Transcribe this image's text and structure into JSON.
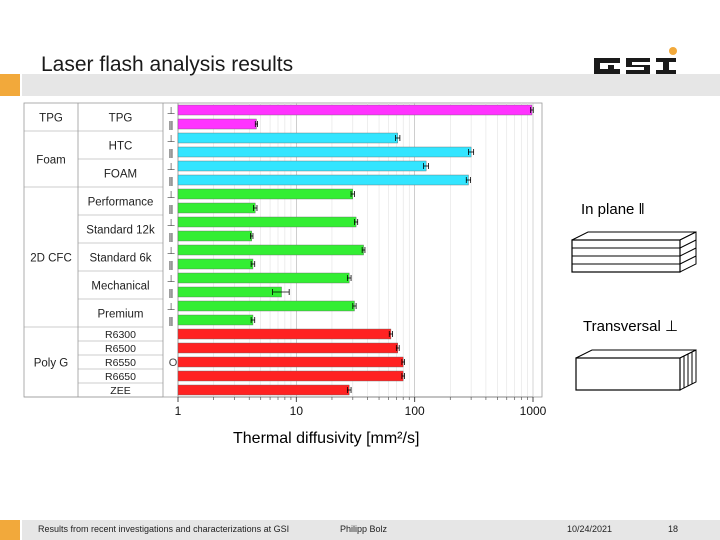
{
  "slide": {
    "title": "Laser flash analysis results",
    "footer_left": "Results from recent investigations and characterizations at GSI",
    "footer_author": "Philipp Bolz",
    "footer_date": "10/24/2021",
    "footer_page": "18",
    "logo_text": "GSI"
  },
  "callouts": {
    "in_plane": "In plane ǁ",
    "transversal": "Transversal ⊥"
  },
  "chart_data": {
    "type": "bar",
    "orientation": "horizontal",
    "x_scale": "log",
    "xlim": [
      1,
      1000
    ],
    "xlabel": "Thermal diffusivity [mm²/s]",
    "xticks": [
      "1",
      "10",
      "100",
      "1000"
    ],
    "grid": true,
    "groups": [
      "TPG",
      "Foam",
      "2D CFC",
      "Poly G"
    ],
    "materials": [
      {
        "group": "TPG",
        "name": "TPG",
        "rows": 2
      },
      {
        "group": "Foam",
        "name": "HTC",
        "rows": 2
      },
      {
        "group": "Foam",
        "name": "FOAM",
        "rows": 2
      },
      {
        "group": "2D CFC",
        "name": "Performance",
        "rows": 2
      },
      {
        "group": "2D CFC",
        "name": "Standard 12k",
        "rows": 2
      },
      {
        "group": "2D CFC",
        "name": "Standard 6k",
        "rows": 2
      },
      {
        "group": "2D CFC",
        "name": "Mechanical",
        "rows": 2
      },
      {
        "group": "2D CFC",
        "name": "Premium",
        "rows": 2
      },
      {
        "group": "Poly G",
        "name": "R6300",
        "rows": 1
      },
      {
        "group": "Poly G",
        "name": "R6500",
        "rows": 1
      },
      {
        "group": "Poly G",
        "name": "R6550",
        "rows": 1
      },
      {
        "group": "Poly G",
        "name": "R6650",
        "rows": 1
      },
      {
        "group": "Poly G",
        "name": "ZEE",
        "rows": 1
      }
    ],
    "orientation_marks": [
      "⊥",
      "ǁ"
    ],
    "isotropic_mark": "O",
    "bars": [
      {
        "value": 980,
        "err": 25,
        "color": "#ff33ff"
      },
      {
        "value": 4.6,
        "err": 0.1,
        "color": "#ff33ff"
      },
      {
        "value": 72,
        "err": 3,
        "color": "#33e5ff"
      },
      {
        "value": 300,
        "err": 15,
        "color": "#33e5ff"
      },
      {
        "value": 125,
        "err": 6,
        "color": "#33e5ff"
      },
      {
        "value": 285,
        "err": 12,
        "color": "#33e5ff"
      },
      {
        "value": 30,
        "err": 1,
        "color": "#33ee33"
      },
      {
        "value": 4.5,
        "err": 0.15,
        "color": "#33ee33"
      },
      {
        "value": 32,
        "err": 1,
        "color": "#33ee33"
      },
      {
        "value": 4.2,
        "err": 0.1,
        "color": "#33ee33"
      },
      {
        "value": 37,
        "err": 1,
        "color": "#33ee33"
      },
      {
        "value": 4.3,
        "err": 0.15,
        "color": "#33ee33"
      },
      {
        "value": 28,
        "err": 1,
        "color": "#33ee33"
      },
      {
        "value": 7.5,
        "err": 1.2,
        "color": "#33ee33"
      },
      {
        "value": 31,
        "err": 1,
        "color": "#33ee33"
      },
      {
        "value": 4.3,
        "err": 0.15,
        "color": "#33ee33"
      },
      {
        "value": 63,
        "err": 2,
        "color": "#ff2222"
      },
      {
        "value": 72,
        "err": 2,
        "color": "#ff2222"
      },
      {
        "value": 80,
        "err": 2,
        "color": "#ff2222"
      },
      {
        "value": 80,
        "err": 2,
        "color": "#ff2222"
      },
      {
        "value": 28,
        "err": 1,
        "color": "#ff2222"
      }
    ]
  }
}
